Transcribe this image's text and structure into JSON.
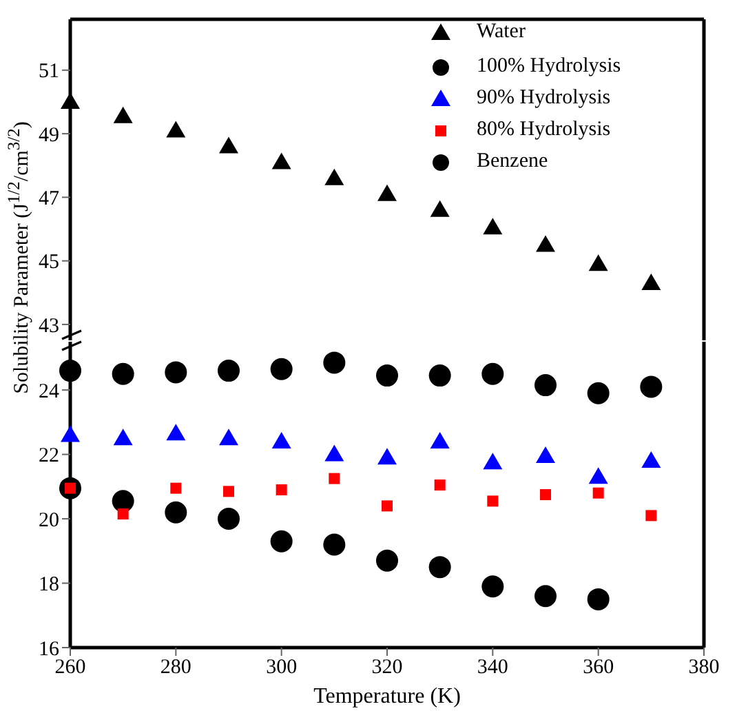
{
  "chart_data": [
    {
      "type": "scatter",
      "x": [
        260,
        270,
        280,
        290,
        300,
        310,
        320,
        330,
        340,
        350,
        360,
        370
      ],
      "xlim": [
        260,
        380
      ],
      "xticks": [
        260,
        280,
        300,
        320,
        340,
        360,
        380
      ],
      "ylim": [
        42.5,
        52.6
      ],
      "yticks": [
        43,
        45,
        47,
        49,
        51
      ],
      "tick_labels": "y",
      "legend": "top right",
      "grid": false,
      "series": [
        {
          "name": "Water",
          "color": "#000000",
          "marker": "triangle",
          "values": [
            50.0,
            49.55,
            49.1,
            48.6,
            48.1,
            47.6,
            47.1,
            46.6,
            46.05,
            45.5,
            44.9,
            44.3
          ]
        }
      ]
    },
    {
      "type": "scatter",
      "x": [
        260,
        270,
        280,
        290,
        300,
        310,
        320,
        330,
        340,
        350,
        360,
        370
      ],
      "xlim": [
        260,
        380
      ],
      "xticks": [
        260,
        280,
        300,
        320,
        340,
        360,
        380
      ],
      "ylim": [
        16,
        25.5
      ],
      "yticks": [
        16,
        18,
        20,
        22,
        24
      ],
      "xlabel": "Temperature (K)",
      "ylabel": "Solubility Parameter (J$^{1/2}$/cm$^{3/2}$)",
      "legend": "top right",
      "grid": false,
      "series": [
        {
          "name": "100% Hydrolysis",
          "color": "#000000",
          "marker": "circle",
          "values": [
            24.6,
            24.5,
            24.55,
            24.6,
            24.65,
            24.85,
            24.45,
            24.45,
            24.5,
            24.15,
            23.9,
            24.1
          ]
        },
        {
          "name": "90% Hydrolysis",
          "color": "#0000ff",
          "marker": "triangle",
          "values": [
            22.6,
            22.5,
            22.65,
            22.5,
            22.4,
            22.0,
            21.9,
            22.4,
            21.75,
            21.95,
            21.3,
            21.8
          ]
        },
        {
          "name": "80% Hydrolysis",
          "color": "#ff0000",
          "marker": "square",
          "values": [
            20.95,
            20.15,
            20.95,
            20.85,
            20.9,
            21.25,
            20.4,
            21.05,
            20.55,
            20.75,
            20.8,
            20.1
          ]
        },
        {
          "name": "Benzene",
          "color": "#000000",
          "marker": "circle",
          "values": [
            20.95,
            20.55,
            20.2,
            20.0,
            19.3,
            19.2,
            18.7,
            18.5,
            17.9,
            17.6,
            17.5,
            null
          ]
        }
      ]
    }
  ]
}
